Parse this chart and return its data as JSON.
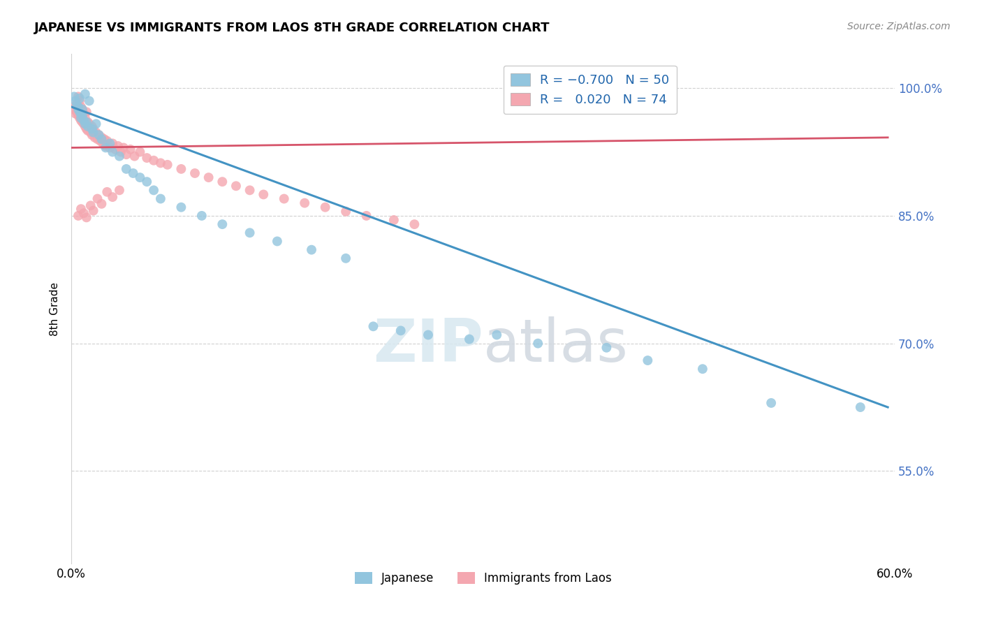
{
  "title": "JAPANESE VS IMMIGRANTS FROM LAOS 8TH GRADE CORRELATION CHART",
  "source": "Source: ZipAtlas.com",
  "ylabel": "8th Grade",
  "xlim": [
    0.0,
    0.6
  ],
  "ylim": [
    0.44,
    1.04
  ],
  "yticks": [
    0.55,
    0.7,
    0.85,
    1.0
  ],
  "ytick_labels": [
    "55.0%",
    "70.0%",
    "85.0%",
    "100.0%"
  ],
  "xticks": [
    0.0,
    0.1,
    0.2,
    0.3,
    0.4,
    0.5,
    0.6
  ],
  "xtick_labels": [
    "0.0%",
    "",
    "",
    "",
    "",
    "",
    "60.0%"
  ],
  "blue_color": "#92c5de",
  "pink_color": "#f4a7b0",
  "blue_line_color": "#4393c3",
  "pink_line_color": "#d6546a",
  "watermark_zip": "ZIP",
  "watermark_atlas": "atlas",
  "japanese_scatter_x": [
    0.002,
    0.003,
    0.004,
    0.005,
    0.005,
    0.006,
    0.006,
    0.007,
    0.007,
    0.008,
    0.008,
    0.009,
    0.01,
    0.01,
    0.011,
    0.012,
    0.013,
    0.015,
    0.016,
    0.018,
    0.02,
    0.022,
    0.025,
    0.028,
    0.03,
    0.035,
    0.04,
    0.045,
    0.05,
    0.055,
    0.06,
    0.065,
    0.08,
    0.095,
    0.11,
    0.13,
    0.15,
    0.175,
    0.2,
    0.22,
    0.24,
    0.26,
    0.29,
    0.31,
    0.34,
    0.39,
    0.42,
    0.46,
    0.51,
    0.575
  ],
  "japanese_scatter_y": [
    0.99,
    0.985,
    0.98,
    0.978,
    0.975,
    0.972,
    0.988,
    0.97,
    0.965,
    0.975,
    0.968,
    0.962,
    0.958,
    0.993,
    0.96,
    0.955,
    0.985,
    0.952,
    0.948,
    0.958,
    0.945,
    0.94,
    0.93,
    0.935,
    0.925,
    0.92,
    0.905,
    0.9,
    0.895,
    0.89,
    0.88,
    0.87,
    0.86,
    0.85,
    0.84,
    0.83,
    0.82,
    0.81,
    0.8,
    0.72,
    0.715,
    0.71,
    0.705,
    0.71,
    0.7,
    0.695,
    0.68,
    0.67,
    0.63,
    0.625
  ],
  "laos_scatter_x": [
    0.002,
    0.003,
    0.003,
    0.004,
    0.005,
    0.005,
    0.006,
    0.006,
    0.007,
    0.007,
    0.008,
    0.008,
    0.009,
    0.009,
    0.01,
    0.01,
    0.011,
    0.011,
    0.012,
    0.012,
    0.013,
    0.014,
    0.015,
    0.015,
    0.016,
    0.017,
    0.018,
    0.019,
    0.02,
    0.021,
    0.022,
    0.023,
    0.024,
    0.025,
    0.026,
    0.028,
    0.03,
    0.032,
    0.034,
    0.036,
    0.038,
    0.04,
    0.043,
    0.046,
    0.05,
    0.055,
    0.06,
    0.065,
    0.07,
    0.08,
    0.09,
    0.1,
    0.11,
    0.12,
    0.13,
    0.14,
    0.155,
    0.17,
    0.185,
    0.2,
    0.215,
    0.235,
    0.25,
    0.005,
    0.007,
    0.009,
    0.011,
    0.014,
    0.016,
    0.019,
    0.022,
    0.026,
    0.03,
    0.035
  ],
  "laos_scatter_y": [
    0.975,
    0.98,
    0.97,
    0.972,
    0.968,
    0.99,
    0.985,
    0.965,
    0.978,
    0.962,
    0.975,
    0.96,
    0.97,
    0.958,
    0.965,
    0.955,
    0.972,
    0.952,
    0.96,
    0.95,
    0.958,
    0.948,
    0.955,
    0.945,
    0.952,
    0.942,
    0.948,
    0.94,
    0.945,
    0.938,
    0.942,
    0.935,
    0.94,
    0.932,
    0.938,
    0.93,
    0.935,
    0.928,
    0.932,
    0.925,
    0.93,
    0.922,
    0.928,
    0.92,
    0.925,
    0.918,
    0.915,
    0.912,
    0.91,
    0.905,
    0.9,
    0.895,
    0.89,
    0.885,
    0.88,
    0.875,
    0.87,
    0.865,
    0.86,
    0.855,
    0.85,
    0.845,
    0.84,
    0.85,
    0.858,
    0.853,
    0.848,
    0.862,
    0.856,
    0.87,
    0.864,
    0.878,
    0.872,
    0.88
  ],
  "blue_line_x": [
    0.0,
    0.595
  ],
  "blue_line_y": [
    0.978,
    0.625
  ],
  "pink_line_x": [
    0.0,
    0.595
  ],
  "pink_line_y": [
    0.93,
    0.942
  ]
}
